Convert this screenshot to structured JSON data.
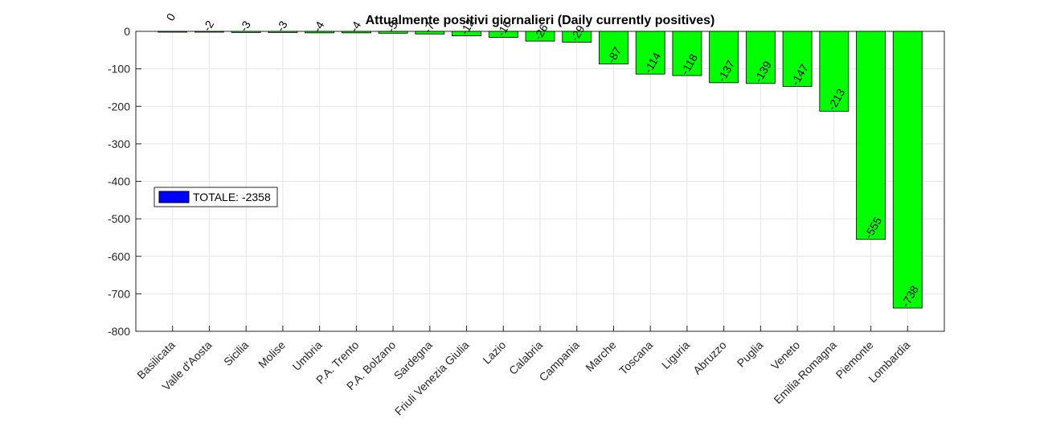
{
  "chart_data": {
    "type": "bar",
    "title": "Attualmente positivi giornalieri (Daily currently positives)",
    "xlabel": "",
    "ylabel": "",
    "ylim": [
      -800,
      0
    ],
    "yticks": [
      0,
      -100,
      -200,
      -300,
      -400,
      -500,
      -600,
      -700,
      -800
    ],
    "grid": true,
    "categories": [
      "Basilicata",
      "Valle d'Aosta",
      "Sicilia",
      "Molise",
      "Umbria",
      "P.A. Trento",
      "P.A. Bolzano",
      "Sardegna",
      "Friuli Venezia Giulia",
      "Lazio",
      "Calabria",
      "Campania",
      "Marche",
      "Toscana",
      "Liguria",
      "Abruzzo",
      "Puglia",
      "Veneto",
      "Emilia-Romagna",
      "Piemonte",
      "Lombardia"
    ],
    "values": [
      0,
      -2,
      -3,
      -3,
      -4,
      -4,
      -5,
      -7,
      -12,
      -16,
      -26,
      -29,
      -87,
      -114,
      -118,
      -137,
      -139,
      -147,
      -213,
      -555,
      -738
    ],
    "bar_color": "#00ff00",
    "legend": {
      "label": "TOTALE: -2358",
      "color": "#0000ff",
      "placement": "left"
    }
  }
}
